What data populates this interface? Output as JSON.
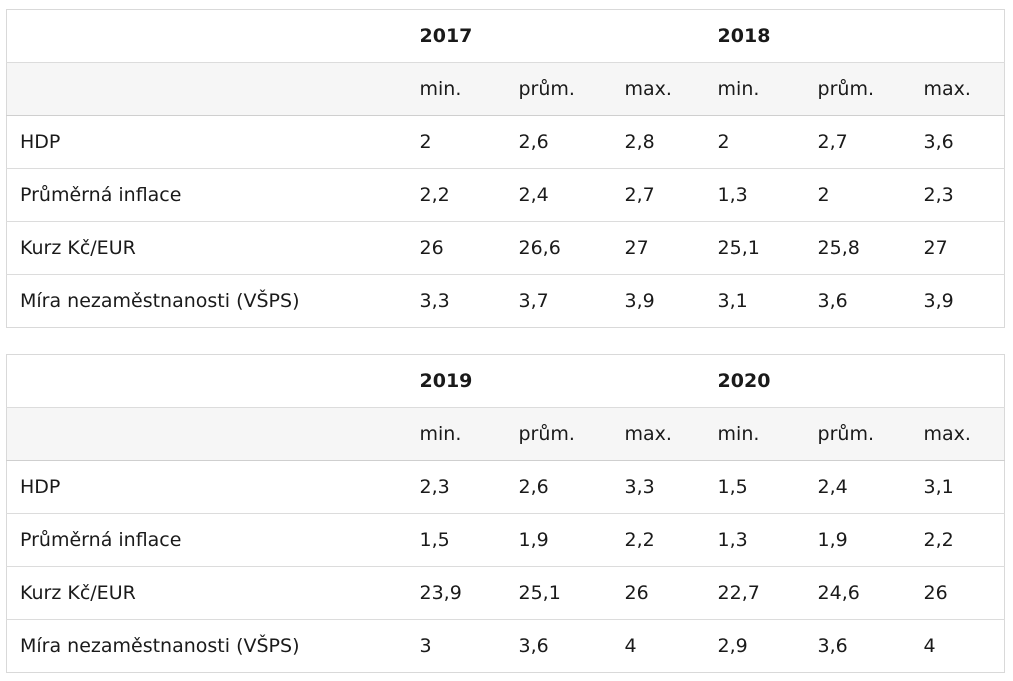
{
  "tables": [
    {
      "year_a": "2017",
      "year_b": "2018",
      "subheaders": [
        "min.",
        "prům.",
        "max.",
        "min.",
        "prům.",
        "max."
      ],
      "rows": [
        {
          "label": "HDP",
          "values": [
            "2",
            "2,6",
            "2,8",
            "2",
            "2,7",
            "3,6"
          ]
        },
        {
          "label": "Průměrná inflace",
          "values": [
            "2,2",
            "2,4",
            "2,7",
            "1,3",
            "2",
            "2,3"
          ]
        },
        {
          "label": "Kurz Kč/EUR",
          "values": [
            "26",
            "26,6",
            "27",
            "25,1",
            "25,8",
            "27"
          ]
        },
        {
          "label": "Míra nezaměstnanosti (VŠPS)",
          "values": [
            "3,3",
            "3,7",
            "3,9",
            "3,1",
            "3,6",
            "3,9"
          ]
        }
      ]
    },
    {
      "year_a": "2019",
      "year_b": "2020",
      "subheaders": [
        "min.",
        "prům.",
        "max.",
        "min.",
        "prům.",
        "max."
      ],
      "rows": [
        {
          "label": "HDP",
          "values": [
            "2,3",
            "2,6",
            "3,3",
            "1,5",
            "2,4",
            "3,1"
          ]
        },
        {
          "label": "Průměrná inflace",
          "values": [
            "1,5",
            "1,9",
            "2,2",
            "1,3",
            "1,9",
            "2,2"
          ]
        },
        {
          "label": "Kurz Kč/EUR",
          "values": [
            "23,9",
            "25,1",
            "26",
            "22,7",
            "24,6",
            "26"
          ]
        },
        {
          "label": "Míra nezaměstnanosti (VŠPS)",
          "values": [
            "3",
            "3,6",
            "4",
            "2,9",
            "3,6",
            "4"
          ]
        }
      ]
    }
  ]
}
